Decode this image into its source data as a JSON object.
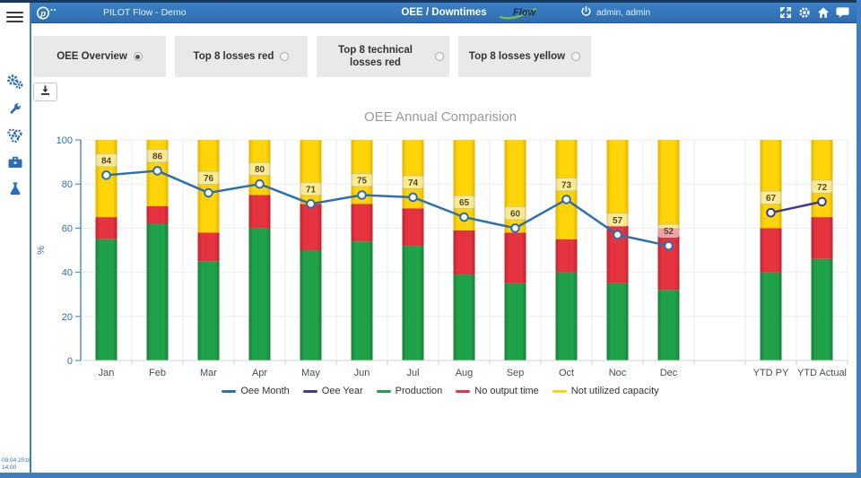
{
  "header": {
    "brand": "PILOT Flow - Demo",
    "title": "OEE / Downtimes",
    "flow_logo_text": "Flow",
    "user": "admin, admin",
    "accent_color": "#2f72b8"
  },
  "sidebar": {
    "icons": [
      "gears-icon",
      "wrench-icon",
      "coins-stack-icon",
      "toolbox-icon",
      "flask-icon"
    ],
    "date_line1": "09.04.2018",
    "date_line2": "14:00"
  },
  "tabs": [
    {
      "label": "OEE Overview",
      "selected": true
    },
    {
      "label": "Top 8 losses red",
      "selected": false
    },
    {
      "label": "Top 8 technical losses red",
      "selected": false
    },
    {
      "label": "Top 8 losses yellow",
      "selected": false
    }
  ],
  "chart_data": {
    "type": "combo-stacked-bar-line",
    "title": "OEE Annual Comparision",
    "ylabel": "%",
    "ylim": [
      0,
      100
    ],
    "yticks": [
      0,
      20,
      40,
      60,
      80,
      100
    ],
    "categories": [
      "Jan",
      "Feb",
      "Mar",
      "Apr",
      "May",
      "Jun",
      "Jul",
      "Aug",
      "Sep",
      "Oct",
      "Noc",
      "Dec",
      "",
      "YTD PY",
      "YTD Actual"
    ],
    "bar_series": [
      {
        "name": "Production",
        "color": "#1fa24a",
        "edge": "#17813a",
        "values": [
          55,
          62,
          45,
          60,
          50,
          54,
          52,
          39,
          35,
          40,
          35,
          32,
          null,
          40,
          46
        ]
      },
      {
        "name": "No output time",
        "color": "#e5333f",
        "edge": "#c02531",
        "values": [
          10,
          8,
          13,
          15,
          21,
          17,
          17,
          20,
          23,
          15,
          26,
          28,
          null,
          20,
          19
        ]
      },
      {
        "name": "Not utilized capacity",
        "color": "#ffd408",
        "edge": "#e0b600",
        "values": [
          35,
          30,
          42,
          25,
          29,
          29,
          31,
          41,
          42,
          45,
          39,
          40,
          null,
          40,
          35
        ]
      }
    ],
    "line_series": [
      {
        "name": "Oee Month",
        "color": "#2e6fad",
        "slots": [
          0,
          1,
          2,
          3,
          4,
          5,
          6,
          7,
          8,
          9,
          10,
          11
        ],
        "values": [
          84,
          86,
          76,
          80,
          71,
          75,
          74,
          65,
          60,
          73,
          57,
          52
        ]
      },
      {
        "name": "Oee Year",
        "color": "#3d3b94",
        "slots": [
          13,
          14
        ],
        "values": [
          67,
          72
        ]
      }
    ],
    "legend": [
      {
        "label": "Oee Month",
        "color": "#2e6fad"
      },
      {
        "label": "Oee Year",
        "color": "#3d3b94"
      },
      {
        "label": "Production",
        "color": "#1fa24a"
      },
      {
        "label": "No output time",
        "color": "#e5333f"
      },
      {
        "label": "Not utilized capacity",
        "color": "#ffd408"
      }
    ],
    "axis_color": "#4a90c8",
    "tick_label_color": "#2e6fad",
    "x_label_color": "#4d4d4d",
    "grid_color": "#ececec",
    "point_label_text_color": "#4b4b38"
  }
}
